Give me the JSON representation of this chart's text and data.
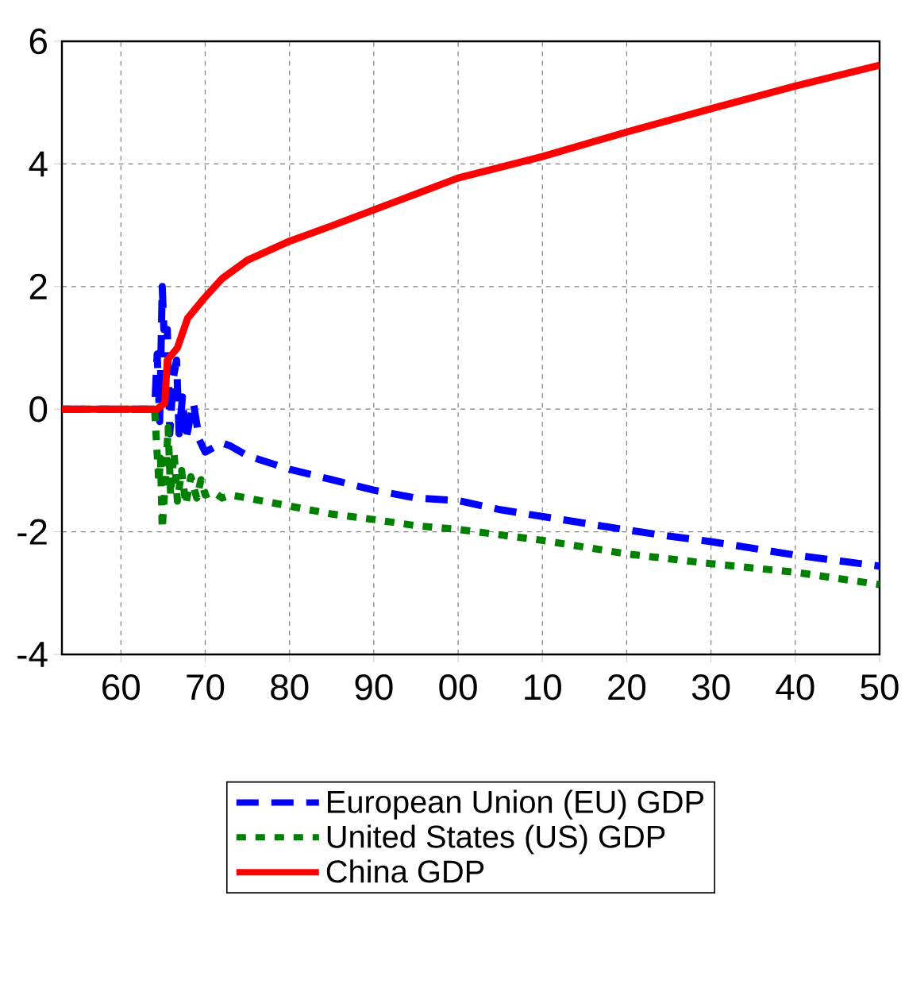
{
  "chart_data": {
    "type": "line",
    "xlim": [
      1953,
      2050
    ],
    "xticks": [
      {
        "value": 1960,
        "label": "60"
      },
      {
        "value": 1970,
        "label": "70"
      },
      {
        "value": 1980,
        "label": "80"
      },
      {
        "value": 1990,
        "label": "90"
      },
      {
        "value": 2000,
        "label": "00"
      },
      {
        "value": 2010,
        "label": "10"
      },
      {
        "value": 2020,
        "label": "20"
      },
      {
        "value": 2030,
        "label": "30"
      },
      {
        "value": 2040,
        "label": "40"
      },
      {
        "value": 2050,
        "label": "50"
      }
    ],
    "ylim": [
      -4,
      6
    ],
    "yticks": [
      -4,
      -2,
      0,
      2,
      4,
      6
    ],
    "grid": true,
    "legend": "bottom",
    "series": [
      {
        "name": "European Union (EU) GDP",
        "color": "#0000ff",
        "line_style": "dashed",
        "x": [
          1953,
          1964,
          1964.3,
          1964.6,
          1964.9,
          1965.1,
          1965.5,
          1965.8,
          1966.2,
          1966.6,
          1966.9,
          1967.3,
          1967.7,
          1968.6,
          1969.3,
          1970,
          1972,
          1973,
          1975,
          1980,
          1985,
          1990,
          1995,
          2000,
          2005,
          2010,
          2015,
          2020,
          2025,
          2030,
          2035,
          2040,
          2045,
          2050
        ],
        "values": [
          0,
          0,
          0.9,
          -0.2,
          2.0,
          1.3,
          1.3,
          -0.4,
          0.5,
          0.8,
          -0.4,
          0.2,
          -0.5,
          0.1,
          -0.5,
          -0.7,
          -0.55,
          -0.6,
          -0.76,
          -0.98,
          -1.15,
          -1.32,
          -1.45,
          -1.49,
          -1.64,
          -1.75,
          -1.86,
          -1.97,
          -2.07,
          -2.16,
          -2.27,
          -2.38,
          -2.47,
          -2.56
        ]
      },
      {
        "name": "United States (US) GDP",
        "color": "#008000",
        "line_style": "dotted",
        "x": [
          1953,
          1964,
          1964.2,
          1964.5,
          1964.7,
          1964.9,
          1965.3,
          1965.6,
          1965.9,
          1966.3,
          1966.7,
          1967.2,
          1967.7,
          1968.3,
          1969,
          1969.5,
          1970,
          1971,
          1972,
          1973,
          1975,
          1980,
          1985,
          1990,
          1995,
          2000,
          2010,
          2020,
          2030,
          2040,
          2050
        ],
        "values": [
          0,
          0,
          -0.5,
          -1.2,
          -0.8,
          -1.95,
          -1.1,
          -0.3,
          -1.4,
          -0.7,
          -1.5,
          -1.0,
          -1.55,
          -1.1,
          -1.45,
          -1.15,
          -1.4,
          -1.35,
          -1.45,
          -1.4,
          -1.45,
          -1.58,
          -1.71,
          -1.8,
          -1.9,
          -1.96,
          -2.14,
          -2.36,
          -2.52,
          -2.66,
          -2.86
        ]
      },
      {
        "name": "China GDP",
        "color": "#ff0000",
        "line_style": "solid",
        "x": [
          1953,
          1964.3,
          1965.2,
          1965.5,
          1966.7,
          1967.9,
          1970,
          1972,
          1975,
          1980,
          1985,
          1990,
          1995,
          2000,
          2010,
          2020,
          2030,
          2040,
          2050
        ],
        "values": [
          0,
          0,
          0.1,
          0.8,
          1.0,
          1.48,
          1.83,
          2.13,
          2.43,
          2.74,
          2.99,
          3.25,
          3.51,
          3.77,
          4.12,
          4.52,
          4.9,
          5.27,
          5.61
        ]
      }
    ]
  }
}
